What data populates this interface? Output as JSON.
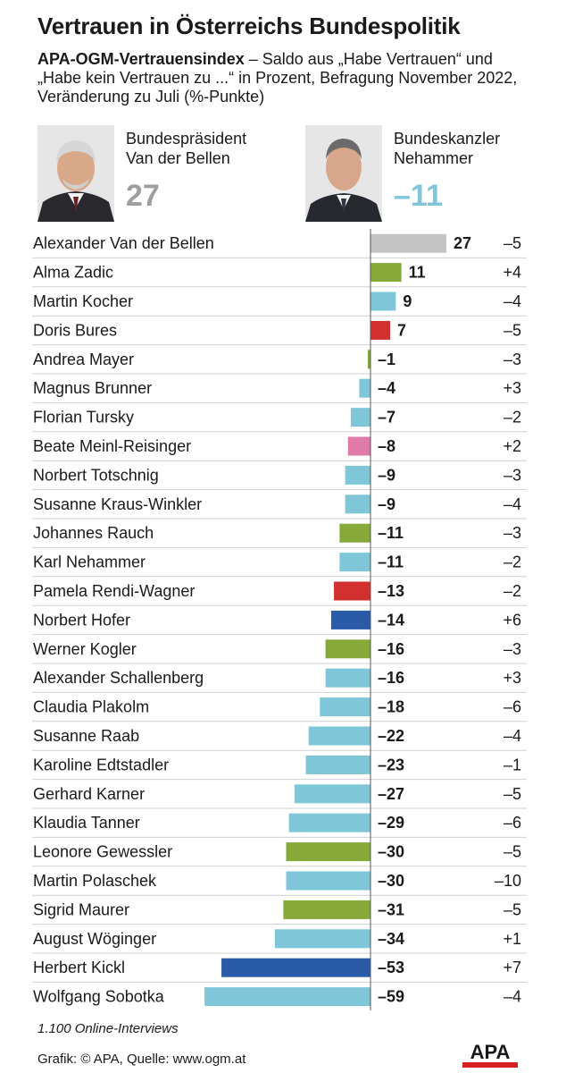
{
  "title": "Vertrauen in Österreichs Bundespolitik",
  "subtitle": {
    "bold": "APA-OGM-Vertrauensindex",
    "text": " – Saldo aus „Habe Vertrauen“ und „Habe kein Vertrauen zu ...“ in Prozent, Befragung November 2022, Veränderung zu Juli (%-Punkte)"
  },
  "highlights": [
    {
      "role_line1": "Bundespräsident",
      "role_line2": "Van der Bellen",
      "value": "27",
      "color": "#9e9e9e"
    },
    {
      "role_line1": "Bundeskanzler",
      "role_line2": "Nehammer",
      "value": "–11",
      "color": "#7fc6d8"
    }
  ],
  "colors": {
    "green": "#86a93a",
    "lightblue": "#7fc6d8",
    "red": "#d2302e",
    "pink": "#e07aa8",
    "darkblue": "#2a5ba8",
    "grey": "#c4c4c4",
    "logo_red": "#d6201f"
  },
  "chart_data": {
    "type": "bar",
    "orientation": "horizontal",
    "categories": [
      "Alexander Van der Bellen",
      "Alma Zadic",
      "Martin Kocher",
      "Doris Bures",
      "Andrea Mayer",
      "Magnus Brunner",
      "Florian Tursky",
      "Beate Meinl-Reisinger",
      "Norbert Totschnig",
      "Susanne Kraus-Winkler",
      "Johannes Rauch",
      "Karl Nehammer",
      "Pamela Rendi-Wagner",
      "Norbert Hofer",
      "Werner Kogler",
      "Alexander Schallenberg",
      "Claudia Plakolm",
      "Susanne Raab",
      "Karoline Edtstadler",
      "Gerhard Karner",
      "Klaudia Tanner",
      "Leonore Gewessler",
      "Martin Polaschek",
      "Sigrid Maurer",
      "August Wöginger",
      "Herbert Kickl",
      "Wolfgang Sobotka"
    ],
    "values": [
      27,
      11,
      9,
      7,
      -1,
      -4,
      -7,
      -8,
      -9,
      -9,
      -11,
      -11,
      -13,
      -14,
      -16,
      -16,
      -18,
      -22,
      -23,
      -27,
      -29,
      -30,
      -30,
      -31,
      -34,
      -53,
      -59
    ],
    "value_labels": [
      "27",
      "11",
      "9",
      "7",
      "–1",
      "–4",
      "–7",
      "–8",
      "–9",
      "–9",
      "–11",
      "–11",
      "–13",
      "–14",
      "–16",
      "–16",
      "–18",
      "–22",
      "–23",
      "–27",
      "–29",
      "–30",
      "–30",
      "–31",
      "–34",
      "–53",
      "–59"
    ],
    "change_labels": [
      "–5",
      "+4",
      "–4",
      "–5",
      "–3",
      "+3",
      "–2",
      "+2",
      "–3",
      "–4",
      "–3",
      "–2",
      "–2",
      "+6",
      "–3",
      "+3",
      "–6",
      "–4",
      "–1",
      "–5",
      "–6",
      "–5",
      "–10",
      "–5",
      "+1",
      "+7",
      "–4"
    ],
    "changes": [
      -5,
      4,
      -4,
      -5,
      -3,
      3,
      -2,
      2,
      -3,
      -4,
      -3,
      -2,
      -2,
      6,
      -3,
      3,
      -6,
      -4,
      -1,
      -5,
      -6,
      -5,
      -10,
      -5,
      1,
      7,
      -4
    ],
    "bar_colors": [
      "grey",
      "green",
      "lightblue",
      "red",
      "green",
      "lightblue",
      "lightblue",
      "pink",
      "lightblue",
      "lightblue",
      "green",
      "lightblue",
      "red",
      "darkblue",
      "green",
      "lightblue",
      "lightblue",
      "lightblue",
      "lightblue",
      "lightblue",
      "lightblue",
      "green",
      "lightblue",
      "green",
      "lightblue",
      "darkblue",
      "lightblue"
    ],
    "xlim": [
      -59,
      27
    ],
    "grid": false,
    "legend": "none"
  },
  "footer": {
    "note": "1.100 Online-Interviews",
    "source": "Grafik: © APA, Quelle: www.ogm.at",
    "logo": "APA"
  }
}
